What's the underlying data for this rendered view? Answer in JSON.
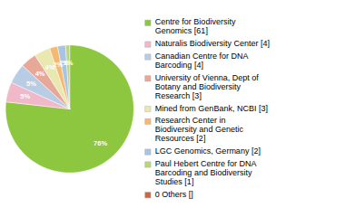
{
  "chart_data": {
    "type": "pie",
    "categories": [
      "Centre for Biodiversity\nGenomics [61]",
      "Naturalis Biodiversity Center [4]",
      "Canadian Centre for DNA\nBarcoding [4]",
      "University of Vienna, Dept of\nBotany and Biodiversity\nResearch [3]",
      "Mined from GenBank, NCBI [3]",
      "Research Center in\nBiodiversity and Genetic\nResources [2]",
      "LGC Genomics, Germany [2]",
      "Paul Hebert Centre for DNA\nBarcoding and Biodiversity\nStudies [1]",
      "0 Others []"
    ],
    "values": [
      76,
      5,
      5,
      4,
      4,
      2,
      2,
      1,
      0
    ],
    "value_labels": [
      "76%",
      "5%",
      "5%",
      "4%",
      "4%",
      "2%",
      "2%",
      "1%",
      null
    ],
    "colors": [
      "#8dc63f",
      "#f0b8c8",
      "#b8cce4",
      "#e8a898",
      "#e8e8b0",
      "#f5b870",
      "#a8c4e0",
      "#b8d878",
      "#cc6644"
    ],
    "data_labels": true,
    "legend": "right"
  }
}
